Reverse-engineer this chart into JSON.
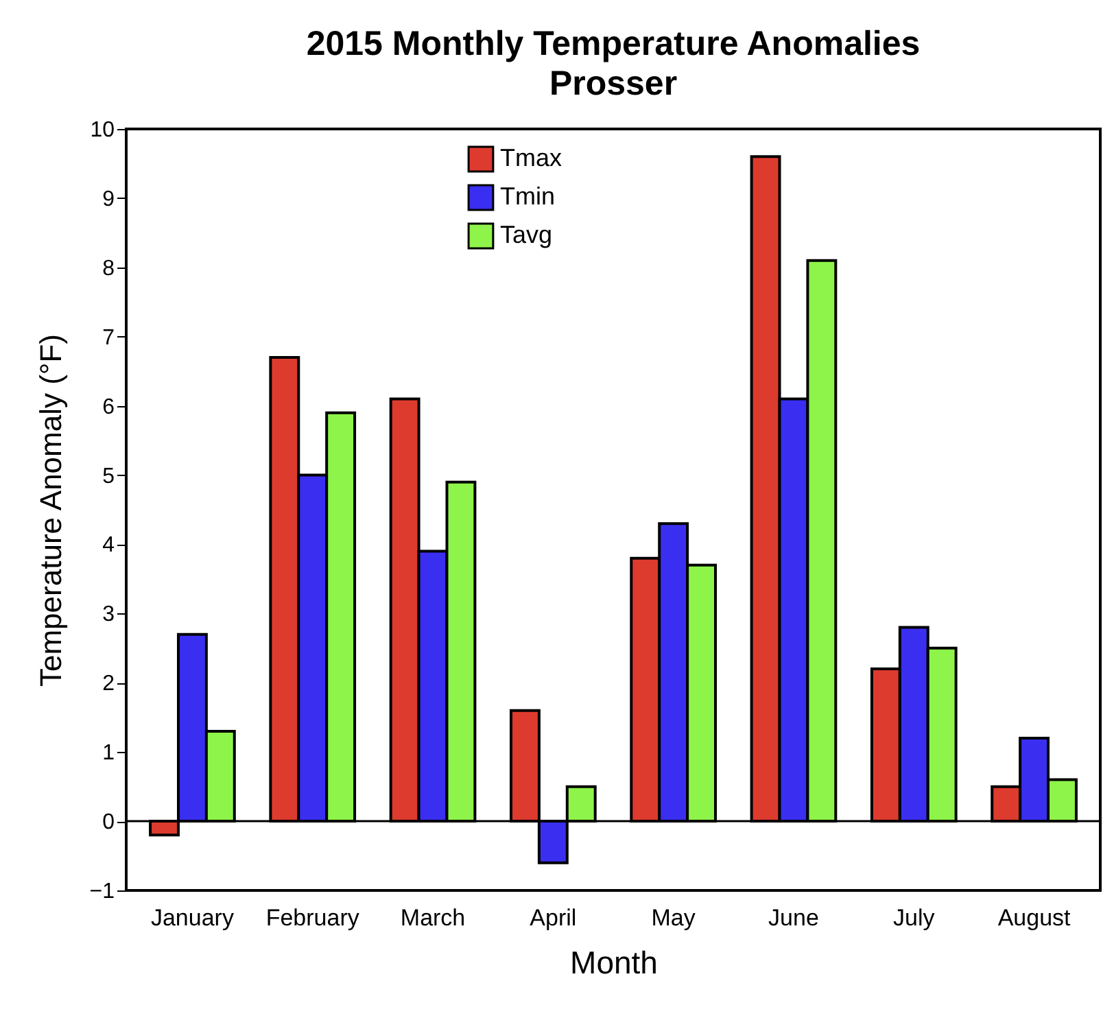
{
  "chart_data": {
    "type": "bar",
    "title": "2015 Monthly Temperature Anomalies",
    "subtitle": "Prosser",
    "xlabel": "Month",
    "ylabel": "Temperature Anomaly (°F)",
    "categories": [
      "January",
      "February",
      "March",
      "April",
      "May",
      "June",
      "July",
      "August"
    ],
    "series": [
      {
        "name": "Tmax",
        "color": "#dd3b2e",
        "values": [
          -0.2,
          6.7,
          6.1,
          1.6,
          3.8,
          9.6,
          2.2,
          0.5
        ]
      },
      {
        "name": "Tmin",
        "color": "#3a2ff0",
        "values": [
          2.7,
          5.0,
          3.9,
          -0.6,
          4.3,
          6.1,
          2.8,
          1.2
        ]
      },
      {
        "name": "Tavg",
        "color": "#8ef44a",
        "values": [
          1.3,
          5.9,
          4.9,
          0.5,
          3.7,
          8.1,
          2.5,
          0.6
        ]
      }
    ],
    "ylim": [
      -1,
      10
    ],
    "yticks": [
      -1,
      0,
      1,
      2,
      3,
      4,
      5,
      6,
      7,
      8,
      9,
      10
    ],
    "ref_lines": [
      {
        "axis": "y",
        "value": 0,
        "label": null,
        "color": "#000000"
      }
    ],
    "legend": "top",
    "grid": false
  }
}
